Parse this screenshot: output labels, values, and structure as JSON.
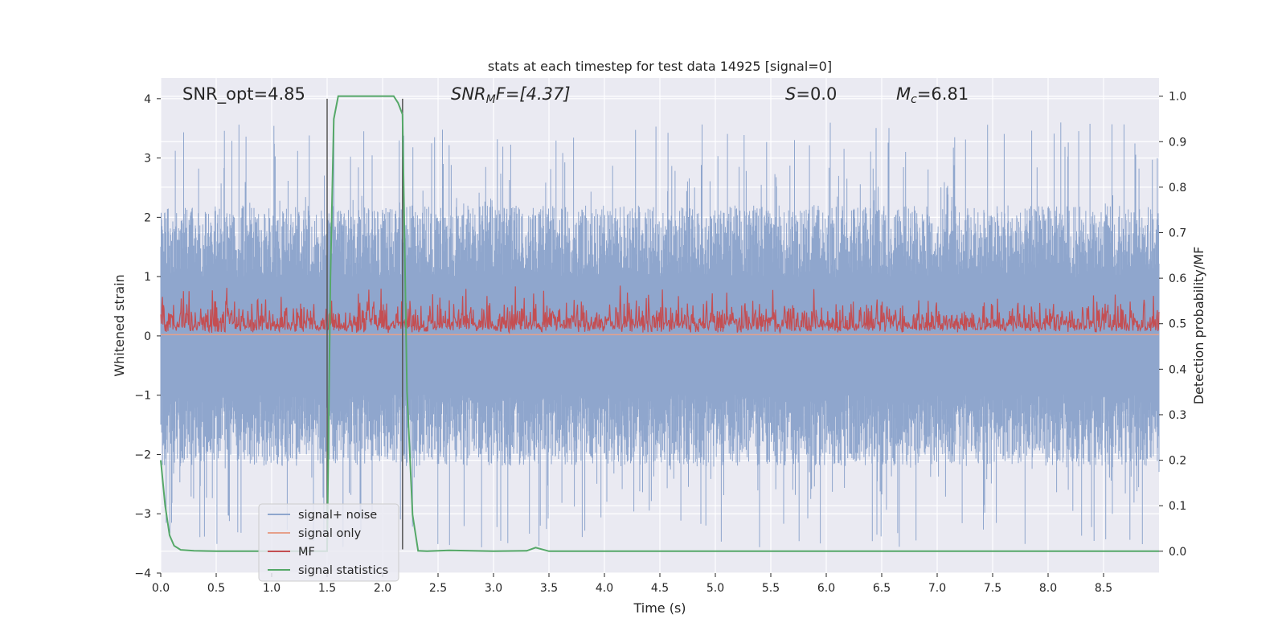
{
  "chart_data": {
    "type": "line",
    "title": "stats at each timestep for test data 14925 [signal=0]",
    "xlabel": "Time (s)",
    "ylabel": "Whitened strain",
    "ylabel_right": "Detection probability/MF",
    "xlim": [
      0,
      9.0
    ],
    "ylim": [
      -4,
      4.35
    ],
    "ylim_right": [
      -0.048,
      1.04
    ],
    "x_ticks": [
      "0.0",
      "0.5",
      "1.0",
      "1.5",
      "2.0",
      "2.5",
      "3.0",
      "3.5",
      "4.0",
      "4.5",
      "5.0",
      "5.5",
      "6.0",
      "6.5",
      "7.0",
      "7.5",
      "8.0",
      "8.5"
    ],
    "y_ticks": [
      "4",
      "3",
      "2",
      "1",
      "0",
      "−1",
      "−2",
      "−3",
      "−4"
    ],
    "y_ticks_right": [
      "1.0",
      "0.9",
      "0.8",
      "0.7",
      "0.6",
      "0.5",
      "0.4",
      "0.3",
      "0.2",
      "0.1",
      "0.0"
    ],
    "grid": true,
    "legend_placement": "lower-left",
    "annotations": {
      "snr_opt": "SNR_opt=4.85",
      "snr_mf_base": "SNR",
      "snr_mf_sub": "M",
      "snr_mf_rest": "F=[4.37]",
      "s_base": "S",
      "s_rest": "=0.0",
      "mc_base": "M",
      "mc_sub": "c",
      "mc_rest": "=6.81"
    },
    "vlines_x": [
      1.5,
      2.18
    ],
    "series": [
      {
        "name": "signal+ noise",
        "color": "#8fa6cd",
        "axis": "left",
        "envelope": [
          -2.2,
          2.2
        ],
        "peak": 3.6
      },
      {
        "name": "signal only",
        "color": "#e6a08a",
        "axis": "left",
        "value": 0.02
      },
      {
        "name": "MF",
        "color": "#c44e52",
        "axis": "left",
        "range": [
          0.0,
          0.85
        ]
      },
      {
        "name": "signal statistics",
        "color": "#55a868",
        "axis": "right",
        "x": [
          0.0,
          0.04,
          0.08,
          0.12,
          0.18,
          0.3,
          0.5,
          1.0,
          1.45,
          1.5,
          1.53,
          1.56,
          1.6,
          1.65,
          2.1,
          2.14,
          2.18,
          2.22,
          2.27,
          2.32,
          2.4,
          2.6,
          3.0,
          3.3,
          3.38,
          3.5,
          4.0,
          6.0,
          9.0
        ],
        "values": [
          0.2,
          0.1,
          0.035,
          0.012,
          0.003,
          0.001,
          0.0,
          0.0,
          0.0,
          0.0,
          0.6,
          0.95,
          1.0,
          1.0,
          1.0,
          0.985,
          0.96,
          0.35,
          0.08,
          0.001,
          0.0,
          0.002,
          0.0,
          0.001,
          0.008,
          0.0,
          0.0,
          0.0,
          0.0
        ]
      }
    ]
  }
}
